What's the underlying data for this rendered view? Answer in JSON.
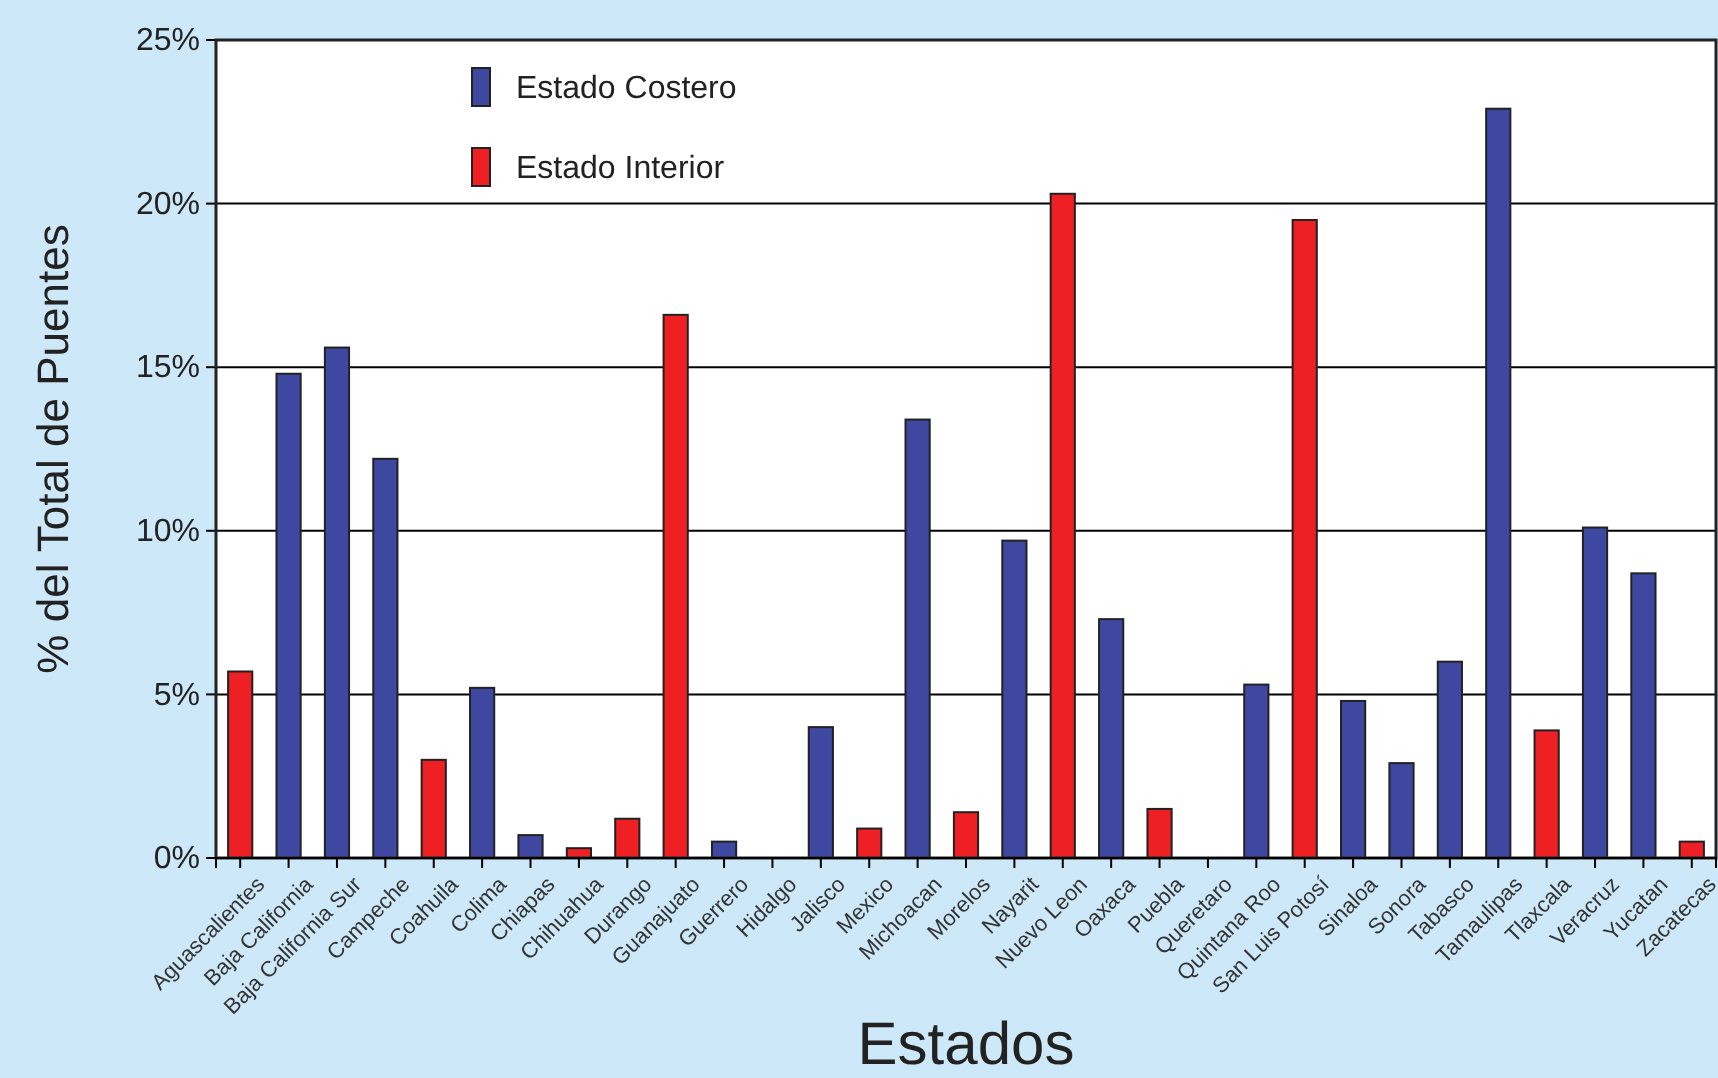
{
  "chart_data": {
    "type": "bar",
    "xlabel": "Estados",
    "ylabel": "% del Total de Puentes",
    "categories": [
      "Aguascalientes",
      "Baja California",
      "Baja California Sur",
      "Campeche",
      "Coahuila",
      "Colima",
      "Chiapas",
      "Chihuahua",
      "Durango",
      "Guanajuato",
      "Guerrero",
      "Hidalgo",
      "Jalisco",
      "Mexico",
      "Michoacan",
      "Morelos",
      "Nayarit",
      "Nuevo Leon",
      "Oaxaca",
      "Puebla",
      "Queretaro",
      "Quintana Roo",
      "San Luis Potosí",
      "Sinaloa",
      "Sonora",
      "Tabasco",
      "Tamaulipas",
      "Tlaxcala",
      "Veracruz",
      "Yucatan",
      "Zacatecas"
    ],
    "series": [
      {
        "name": "Estado Costero",
        "color": "#3f48a0",
        "values": [
          null,
          14.8,
          15.6,
          12.2,
          null,
          5.2,
          0.7,
          null,
          null,
          null,
          0.5,
          null,
          4.0,
          null,
          13.4,
          null,
          9.7,
          null,
          7.3,
          null,
          null,
          5.3,
          null,
          4.8,
          2.9,
          6.0,
          22.9,
          null,
          10.1,
          8.7,
          null
        ]
      },
      {
        "name": "Estado Interior",
        "color": "#ee2024",
        "values": [
          5.7,
          null,
          null,
          null,
          3.0,
          null,
          null,
          0.3,
          1.2,
          16.6,
          null,
          0,
          null,
          0.9,
          null,
          1.4,
          null,
          20.3,
          null,
          1.5,
          0,
          null,
          19.5,
          null,
          null,
          null,
          null,
          3.9,
          null,
          null,
          0.5
        ]
      }
    ],
    "ylim": [
      0,
      25
    ],
    "yticks": [
      {
        "value": 0,
        "label": "0%"
      },
      {
        "value": 5,
        "label": "5%"
      },
      {
        "value": 10,
        "label": "10%"
      },
      {
        "value": 15,
        "label": "15%"
      },
      {
        "value": 20,
        "label": "20%"
      },
      {
        "value": 25,
        "label": "25%"
      }
    ],
    "grid": "y",
    "legend": "top"
  }
}
